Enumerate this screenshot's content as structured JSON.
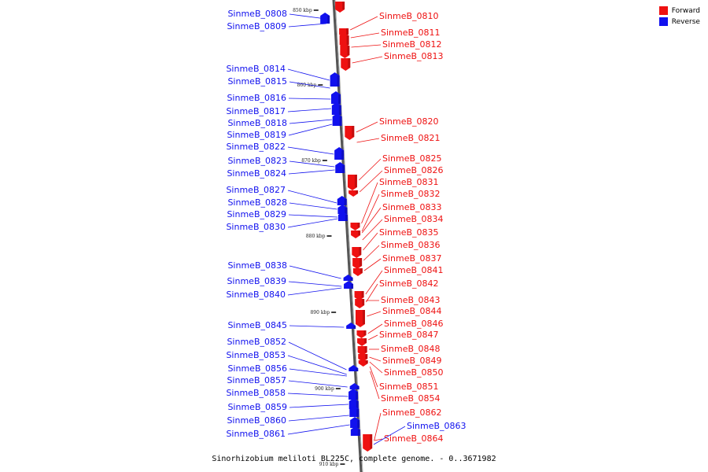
{
  "legend": {
    "forward_label": "Forward",
    "reverse_label": "Reverse",
    "forward_color": "#ee1111",
    "reverse_color": "#1111ee"
  },
  "caption": "Sinorhizobium meliloti BL225C, complete genome. - 0..3671982",
  "ticks": [
    "850 kbp",
    "860 kbp",
    "870 kbp",
    "880 kbp",
    "890 kbp",
    "900 kbp",
    "910 kbp"
  ],
  "forward_genes": [
    "SinmeB_0810",
    "SinmeB_0811",
    "SinmeB_0812",
    "SinmeB_0813",
    "SinmeB_0820",
    "SinmeB_0821",
    "SinmeB_0825",
    "SinmeB_0826",
    "SinmeB_0831",
    "SinmeB_0832",
    "SinmeB_0833",
    "SinmeB_0834",
    "SinmeB_0835",
    "SinmeB_0836",
    "SinmeB_0837",
    "SinmeB_0841",
    "SinmeB_0842",
    "SinmeB_0843",
    "SinmeB_0844",
    "SinmeB_0846",
    "SinmeB_0847",
    "SinmeB_0848",
    "SinmeB_0849",
    "SinmeB_0850",
    "SinmeB_0851",
    "SinmeB_0854",
    "SinmeB_0862",
    "SinmeB_0864"
  ],
  "reverse_genes": [
    "SinmeB_0808",
    "SinmeB_0809",
    "SinmeB_0814",
    "SinmeB_0815",
    "SinmeB_0816",
    "SinmeB_0817",
    "SinmeB_0818",
    "SinmeB_0819",
    "SinmeB_0822",
    "SinmeB_0823",
    "SinmeB_0824",
    "SinmeB_0827",
    "SinmeB_0828",
    "SinmeB_0829",
    "SinmeB_0830",
    "SinmeB_0838",
    "SinmeB_0839",
    "SinmeB_0840",
    "SinmeB_0845",
    "SinmeB_0852",
    "SinmeB_0853",
    "SinmeB_0856",
    "SinmeB_0857",
    "SinmeB_0858",
    "SinmeB_0859",
    "SinmeB_0860",
    "SinmeB_0861",
    "SinmeB_0863"
  ]
}
